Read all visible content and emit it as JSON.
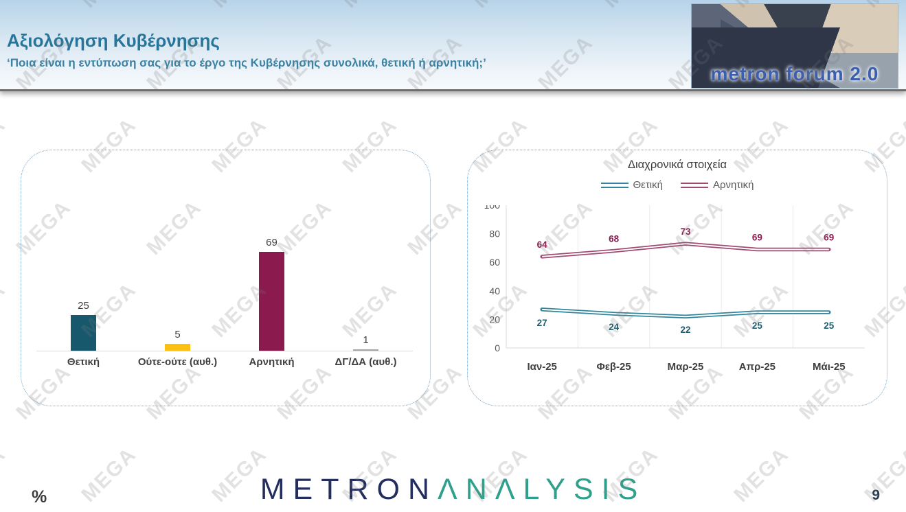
{
  "watermark": {
    "text": "MEGA"
  },
  "header": {
    "title": "Αξιολόγηση Κυβέρνησης",
    "subtitle": "‘Ποια είναι η εντύπωση σας για το έργο της Κυβέρνησης συνολικά, θετική ή αρνητική;’",
    "logo_text": "metron forum 2.0"
  },
  "footer": {
    "percent_label": "%",
    "page_number": "9",
    "brand_part1": "METRON",
    "brand_part2": "ΛNΛLYSIS"
  },
  "colors": {
    "title_teal": "#27759a",
    "panel_border": "#74a3c7",
    "axis_gray": "#d9d9d9",
    "tick_gray": "#595959",
    "label_dark": "#404040"
  },
  "chart_data": [
    {
      "type": "bar",
      "title": "",
      "categories": [
        "Θετική",
        "Ούτε-ούτε (αυθ.)",
        "Αρνητική",
        "ΔΓ/ΔΑ (αυθ.)"
      ],
      "values": [
        25,
        5,
        69,
        1
      ],
      "bar_colors": [
        "#17586c",
        "#fcbf13",
        "#8b1a4f",
        "#a6a6a6"
      ],
      "value_label_color": "#404040",
      "unit": "%",
      "ylim": [
        0,
        100
      ],
      "grid": false
    },
    {
      "type": "line",
      "title": "Διαχρονικά στοιχεία",
      "categories": [
        "Ιαν-25",
        "Φεβ-25",
        "Μαρ-25",
        "Απρ-25",
        "Μάι-25"
      ],
      "series": [
        {
          "name": "Αρνητική",
          "values": [
            64,
            68,
            73,
            69,
            69
          ],
          "color": "#a34a72",
          "label_color": "#8b1a4f",
          "label_position": "above"
        },
        {
          "name": "Θετική",
          "values": [
            27,
            24,
            22,
            25,
            25
          ],
          "color": "#31859c",
          "label_color": "#1f5c6d",
          "label_position": "below"
        }
      ],
      "legend_order": [
        "Θετική",
        "Αρνητική"
      ],
      "legend_position": "top",
      "ylim": [
        0,
        100
      ],
      "yticks": [
        0,
        20,
        40,
        60,
        80,
        100
      ],
      "grid": "vertical"
    }
  ]
}
